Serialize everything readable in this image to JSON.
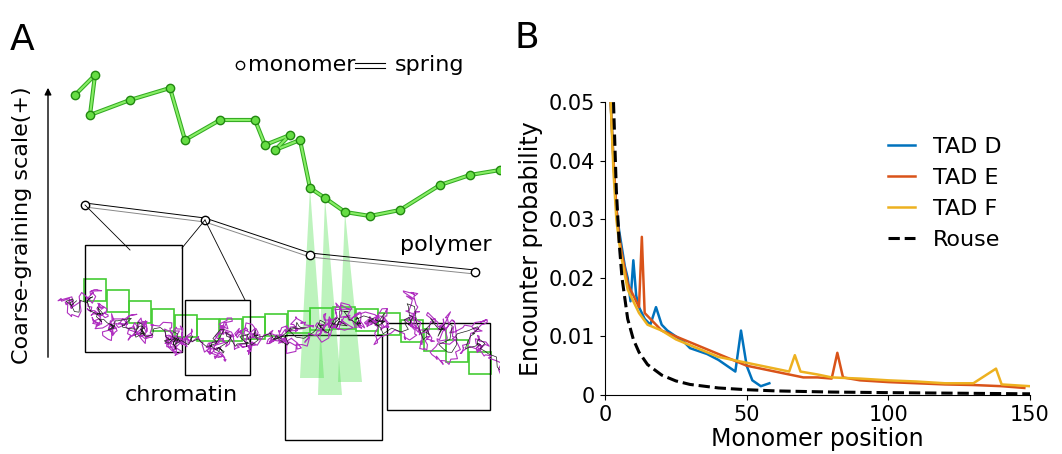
{
  "diagram": {
    "panel": "A",
    "monomer_label": "monomer",
    "spring_label": "spring",
    "scale_label": "Coarse-graining scale(+)",
    "polymer_label": "polymer",
    "chromatin_label": "chromatin"
  },
  "chart_data": {
    "type": "line",
    "title": "B",
    "x_label": "Monomer position",
    "y_label": "Encounter probability",
    "xlim": [
      0,
      150
    ],
    "ylim": [
      0,
      0.05
    ],
    "xticks": [
      0,
      50,
      100,
      150
    ],
    "yticks": [
      0,
      0.01,
      0.02,
      0.03,
      0.04,
      0.05
    ],
    "grid": false,
    "legend": "upper right",
    "series": [
      {
        "name": "TAD D",
        "color": "#0072bd",
        "line_style": "solid",
        "x": [
          2,
          3,
          4,
          5,
          6,
          7,
          8,
          9,
          10,
          11,
          12,
          14,
          16,
          18,
          20,
          22,
          25,
          28,
          30,
          33,
          36,
          40,
          43,
          46,
          48,
          50,
          52,
          55,
          58
        ],
        "values": [
          0.05,
          0.04,
          0.032,
          0.028,
          0.025,
          0.022,
          0.02,
          0.016,
          0.023,
          0.017,
          0.015,
          0.013,
          0.012,
          0.015,
          0.012,
          0.011,
          0.01,
          0.009,
          0.008,
          0.0075,
          0.007,
          0.006,
          0.005,
          0.004,
          0.011,
          0.005,
          0.0025,
          0.0015,
          0.002
        ]
      },
      {
        "name": "TAD E",
        "color": "#d95319",
        "line_style": "solid",
        "x": [
          2,
          3,
          4,
          5,
          6,
          8,
          10,
          12,
          13,
          14,
          16,
          18,
          20,
          25,
          30,
          35,
          40,
          45,
          50,
          55,
          60,
          65,
          70,
          75,
          80,
          82,
          84,
          90,
          100,
          110,
          120,
          130,
          140,
          148
        ],
        "values": [
          0.05,
          0.04,
          0.032,
          0.027,
          0.024,
          0.019,
          0.017,
          0.015,
          0.027,
          0.014,
          0.013,
          0.012,
          0.011,
          0.01,
          0.009,
          0.008,
          0.007,
          0.006,
          0.005,
          0.0045,
          0.004,
          0.0035,
          0.003,
          0.003,
          0.0028,
          0.0072,
          0.003,
          0.0025,
          0.0022,
          0.002,
          0.0018,
          0.0017,
          0.0015,
          0.0012
        ]
      },
      {
        "name": "TAD F",
        "color": "#edb120",
        "line_style": "solid",
        "x": [
          2,
          3,
          4,
          5,
          6,
          8,
          10,
          12,
          15,
          20,
          25,
          30,
          35,
          40,
          45,
          50,
          55,
          60,
          65,
          67,
          69,
          75,
          80,
          90,
          100,
          110,
          120,
          130,
          138,
          140,
          150
        ],
        "values": [
          0.05,
          0.038,
          0.03,
          0.026,
          0.023,
          0.018,
          0.016,
          0.014,
          0.012,
          0.011,
          0.0095,
          0.0085,
          0.0075,
          0.0065,
          0.006,
          0.0055,
          0.005,
          0.0045,
          0.004,
          0.0068,
          0.004,
          0.0035,
          0.003,
          0.0028,
          0.0025,
          0.0023,
          0.002,
          0.002,
          0.0045,
          0.0018,
          0.0015
        ]
      },
      {
        "name": "Rouse",
        "color": "#000000",
        "line_style": "dashed",
        "x": [
          3,
          4,
          5,
          6,
          8,
          10,
          12,
          15,
          20,
          25,
          30,
          40,
          50,
          60,
          80,
          100,
          125,
          150
        ],
        "values": [
          0.05,
          0.035,
          0.026,
          0.02,
          0.013,
          0.0095,
          0.0073,
          0.0052,
          0.0034,
          0.0024,
          0.0018,
          0.0012,
          0.0009,
          0.0007,
          0.0005,
          0.0004,
          0.0003,
          0.0002
        ]
      }
    ]
  }
}
